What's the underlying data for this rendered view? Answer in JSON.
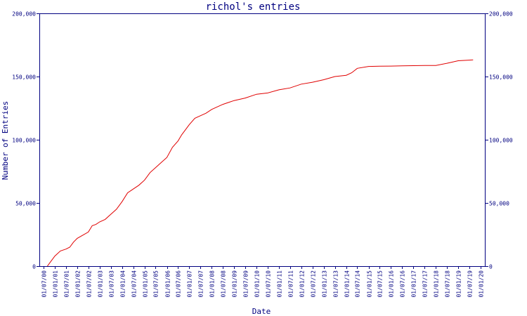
{
  "chart_data": {
    "type": "line",
    "title": "richol's entries",
    "xlabel": "Date",
    "ylabel": "Number of Entries",
    "ylim": [
      0,
      200000
    ],
    "grid": false,
    "y_ticks": [
      0,
      50000,
      100000,
      150000,
      200000
    ],
    "y_tick_labels": [
      "0",
      "50,000",
      "100,000",
      "150,000",
      "200,000"
    ],
    "x_ticks": [
      "2000-07-01",
      "2001-01-01",
      "2001-07-01",
      "2002-01-01",
      "2002-07-01",
      "2003-01-01",
      "2003-07-01",
      "2004-01-01",
      "2004-07-01",
      "2005-01-01",
      "2005-07-01",
      "2006-01-01",
      "2006-07-01",
      "2007-01-01",
      "2007-07-01",
      "2008-01-01",
      "2008-07-01",
      "2009-01-01",
      "2009-07-01",
      "2010-01-01",
      "2010-07-01",
      "2011-01-01",
      "2011-07-01",
      "2012-01-01",
      "2012-07-01",
      "2013-01-01",
      "2013-07-01",
      "2014-01-01",
      "2014-07-01",
      "2015-01-01",
      "2015-07-01",
      "2016-01-01",
      "2016-07-01",
      "2017-01-01",
      "2017-07-01",
      "2018-01-01",
      "2018-07-01",
      "2019-01-01",
      "2019-07-01",
      "2020-01-01"
    ],
    "x_tick_labels": [
      "01/07/00",
      "01/01/01",
      "01/07/01",
      "01/01/02",
      "01/07/02",
      "01/01/03",
      "01/07/03",
      "01/01/04",
      "01/07/04",
      "01/01/05",
      "01/07/05",
      "01/01/06",
      "01/07/06",
      "01/01/07",
      "01/07/07",
      "01/01/08",
      "01/07/08",
      "01/01/09",
      "01/07/09",
      "01/01/10",
      "01/07/10",
      "01/01/11",
      "01/07/11",
      "01/01/12",
      "01/07/12",
      "01/01/13",
      "01/07/13",
      "01/01/14",
      "01/07/14",
      "01/01/15",
      "01/07/15",
      "01/01/16",
      "01/07/16",
      "01/01/17",
      "01/07/17",
      "01/01/18",
      "01/07/18",
      "01/01/19",
      "01/07/19",
      "01/01/20"
    ],
    "series": [
      {
        "color": "#e00000",
        "points": [
          [
            "2000-09-01",
            0
          ],
          [
            "2000-11-01",
            4000
          ],
          [
            "2001-01-01",
            8000
          ],
          [
            "2001-04-01",
            12000
          ],
          [
            "2001-07-01",
            13500
          ],
          [
            "2001-09-01",
            15000
          ],
          [
            "2001-11-01",
            19000
          ],
          [
            "2002-01-01",
            22000
          ],
          [
            "2002-04-01",
            24500
          ],
          [
            "2002-07-01",
            27000
          ],
          [
            "2002-09-01",
            32000
          ],
          [
            "2002-11-01",
            33000
          ],
          [
            "2003-01-01",
            35000
          ],
          [
            "2003-04-01",
            37000
          ],
          [
            "2003-07-01",
            41000
          ],
          [
            "2003-10-01",
            45000
          ],
          [
            "2004-01-01",
            51000
          ],
          [
            "2004-04-01",
            58000
          ],
          [
            "2004-07-01",
            61000
          ],
          [
            "2004-10-01",
            64000
          ],
          [
            "2005-01-01",
            68000
          ],
          [
            "2005-04-01",
            74000
          ],
          [
            "2005-07-01",
            78000
          ],
          [
            "2005-10-01",
            82000
          ],
          [
            "2006-01-01",
            86000
          ],
          [
            "2006-04-01",
            94000
          ],
          [
            "2006-07-01",
            99000
          ],
          [
            "2006-09-01",
            104000
          ],
          [
            "2006-11-01",
            108000
          ],
          [
            "2007-01-01",
            112000
          ],
          [
            "2007-04-01",
            117000
          ],
          [
            "2007-07-01",
            119000
          ],
          [
            "2007-10-01",
            121000
          ],
          [
            "2008-01-01",
            124000
          ],
          [
            "2008-04-01",
            126000
          ],
          [
            "2008-07-01",
            128000
          ],
          [
            "2008-10-01",
            129500
          ],
          [
            "2009-01-01",
            131000
          ],
          [
            "2009-07-01",
            133000
          ],
          [
            "2010-01-01",
            136000
          ],
          [
            "2010-07-01",
            137000
          ],
          [
            "2011-01-01",
            139500
          ],
          [
            "2011-07-01",
            141000
          ],
          [
            "2012-01-01",
            144000
          ],
          [
            "2012-07-01",
            145500
          ],
          [
            "2013-01-01",
            147500
          ],
          [
            "2013-07-01",
            150000
          ],
          [
            "2014-01-01",
            151000
          ],
          [
            "2014-04-01",
            153000
          ],
          [
            "2014-07-01",
            156500
          ],
          [
            "2015-01-01",
            158000
          ],
          [
            "2015-07-01",
            158200
          ],
          [
            "2016-01-01",
            158300
          ],
          [
            "2016-07-01",
            158500
          ],
          [
            "2017-01-01",
            158600
          ],
          [
            "2017-07-01",
            158700
          ],
          [
            "2018-01-01",
            158800
          ],
          [
            "2018-07-01",
            160500
          ],
          [
            "2019-01-01",
            162500
          ],
          [
            "2019-07-01",
            163000
          ],
          [
            "2019-09-01",
            163200
          ]
        ]
      }
    ]
  }
}
